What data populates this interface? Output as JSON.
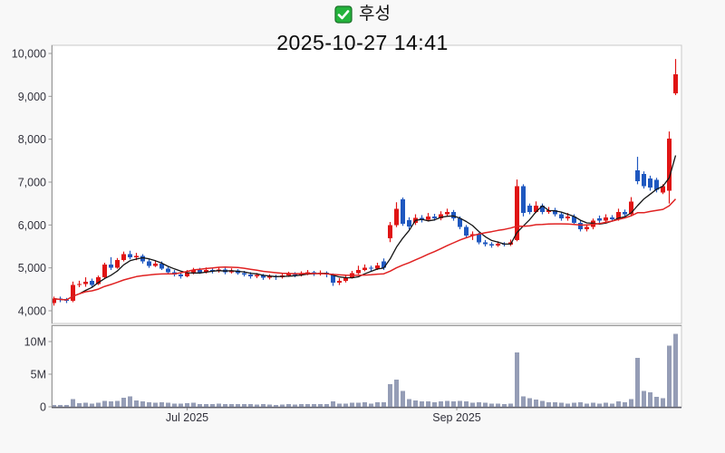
{
  "header": {
    "stock_name": "후성",
    "checkbox_icon": "checked-green-checkbox",
    "datetime": "2025-10-27 14:41"
  },
  "colors": {
    "background": "#f8f8f8",
    "plot_background": "#ffffff",
    "plot_border": "#c9c9c9",
    "axis_line": "#999999",
    "bottom_axis_line": "#5f5f6a",
    "axis_text": "#32323c",
    "candle_up_red": "#e01414",
    "candle_down_blue": "#1f58c0",
    "ma_fast_black": "#141414",
    "ma_slow_red": "#e02222",
    "volume_bar": "#959db6",
    "check_green": "#24b33c",
    "check_green_border": "#1a6e28",
    "check_mark_white": "#ffffff"
  },
  "chart_data": {
    "type": "candlestick",
    "title": "후성 2025-10-27 14:41",
    "panels": [
      "price",
      "volume"
    ],
    "price_axis": {
      "min": 4000,
      "max": 10000,
      "tick_step": 1000,
      "tick_values": [
        10000,
        9000,
        8000,
        7000,
        6000,
        5000,
        4000
      ],
      "tick_labels": [
        "10,000",
        "9,000",
        "8,000",
        "7,000",
        "6,000",
        "5,000",
        "4,000"
      ],
      "grid": false
    },
    "volume_axis": {
      "tick_values": [
        10,
        5,
        0
      ],
      "tick_labels": [
        "10M",
        "5M",
        "0"
      ],
      "unit": "millions_of_shares",
      "grid": false
    },
    "x_ticks": [
      {
        "label": "Jul 2025",
        "index": 21
      },
      {
        "label": "Sep 2025",
        "index": 63.5
      }
    ],
    "moving_averages": [
      {
        "name": "ma-fast",
        "window": 5,
        "color_key": "ma_fast_black",
        "width": 1.3
      },
      {
        "name": "ma-slow",
        "window": 20,
        "color_key": "ma_slow_red",
        "width": 1.5
      }
    ],
    "ohlcv_format": [
      "open",
      "high",
      "low",
      "close",
      "volume_millions"
    ],
    "candles": [
      [
        4180,
        4330,
        4120,
        4280,
        0.3
      ],
      [
        4280,
        4330,
        4200,
        4250,
        0.25
      ],
      [
        4250,
        4300,
        4180,
        4230,
        0.3
      ],
      [
        4230,
        4680,
        4200,
        4600,
        1.2
      ],
      [
        4600,
        4700,
        4550,
        4620,
        0.55
      ],
      [
        4620,
        4780,
        4560,
        4680,
        0.6
      ],
      [
        4700,
        4750,
        4550,
        4600,
        0.5
      ],
      [
        4620,
        4820,
        4600,
        4780,
        0.65
      ],
      [
        4780,
        5120,
        4760,
        5080,
        0.9
      ],
      [
        5080,
        5250,
        4950,
        5000,
        0.8
      ],
      [
        5000,
        5230,
        4980,
        5180,
        0.9
      ],
      [
        5180,
        5380,
        5150,
        5320,
        1.4
      ],
      [
        5320,
        5400,
        5200,
        5250,
        1.6
      ],
      [
        5250,
        5350,
        5180,
        5280,
        1.0
      ],
      [
        5280,
        5320,
        5100,
        5150,
        0.8
      ],
      [
        5150,
        5200,
        5000,
        5050,
        0.7
      ],
      [
        5050,
        5180,
        5020,
        5100,
        0.6
      ],
      [
        5100,
        5150,
        4950,
        4980,
        0.7
      ],
      [
        4980,
        5020,
        4850,
        4900,
        0.6
      ],
      [
        4900,
        4950,
        4800,
        4850,
        0.5
      ],
      [
        4850,
        4900,
        4750,
        4800,
        0.5
      ],
      [
        4800,
        4950,
        4780,
        4900,
        0.55
      ],
      [
        4900,
        5000,
        4850,
        4950,
        0.6
      ],
      [
        4950,
        5000,
        4860,
        4900,
        0.4
      ],
      [
        4900,
        5010,
        4870,
        4950,
        0.45
      ],
      [
        4950,
        4990,
        4870,
        4920,
        0.4
      ],
      [
        4920,
        5020,
        4890,
        4960,
        0.5
      ],
      [
        4960,
        5000,
        4850,
        4900,
        0.4
      ],
      [
        4900,
        4990,
        4870,
        4940,
        0.4
      ],
      [
        4940,
        4970,
        4840,
        4880,
        0.4
      ],
      [
        4880,
        4930,
        4800,
        4850,
        0.4
      ],
      [
        4850,
        4900,
        4750,
        4800,
        0.4
      ],
      [
        4800,
        4880,
        4760,
        4830,
        0.35
      ],
      [
        4830,
        4860,
        4720,
        4770,
        0.4
      ],
      [
        4770,
        4850,
        4730,
        4800,
        0.35
      ],
      [
        4800,
        4840,
        4720,
        4780,
        0.3
      ],
      [
        4780,
        4870,
        4750,
        4820,
        0.35
      ],
      [
        4820,
        4910,
        4790,
        4860,
        0.4
      ],
      [
        4860,
        4900,
        4780,
        4830,
        0.35
      ],
      [
        4830,
        4920,
        4800,
        4870,
        0.4
      ],
      [
        4870,
        4950,
        4830,
        4900,
        0.45
      ],
      [
        4900,
        4930,
        4810,
        4860,
        0.4
      ],
      [
        4860,
        4940,
        4820,
        4890,
        0.4
      ],
      [
        4890,
        4920,
        4780,
        4840,
        0.45
      ],
      [
        4840,
        4870,
        4580,
        4650,
        0.8
      ],
      [
        4650,
        4760,
        4600,
        4700,
        0.5
      ],
      [
        4700,
        4830,
        4660,
        4780,
        0.5
      ],
      [
        4780,
        4930,
        4750,
        4880,
        0.6
      ],
      [
        4880,
        5050,
        4850,
        4950,
        0.6
      ],
      [
        4950,
        5080,
        4920,
        5000,
        0.7
      ],
      [
        5000,
        5050,
        4930,
        4980,
        0.5
      ],
      [
        4980,
        5120,
        4950,
        5060,
        0.7
      ],
      [
        5150,
        5220,
        4950,
        5000,
        0.7
      ],
      [
        5690,
        6070,
        5600,
        6000,
        3.5
      ],
      [
        6000,
        6530,
        5950,
        6380,
        4.2
      ],
      [
        6600,
        6640,
        5980,
        6030,
        2.4
      ],
      [
        6110,
        6180,
        5900,
        5960,
        1.2
      ],
      [
        6050,
        6250,
        6000,
        6170,
        1.0
      ],
      [
        6170,
        6230,
        6060,
        6120,
        0.8
      ],
      [
        6120,
        6280,
        6080,
        6200,
        0.8
      ],
      [
        6200,
        6260,
        6100,
        6150,
        0.7
      ],
      [
        6150,
        6320,
        6110,
        6250,
        0.8
      ],
      [
        6250,
        6380,
        6200,
        6300,
        0.9
      ],
      [
        6300,
        6350,
        6100,
        6150,
        0.8
      ],
      [
        6150,
        6200,
        5900,
        5950,
        0.9
      ],
      [
        5950,
        6000,
        5700,
        5750,
        0.8
      ],
      [
        5750,
        5850,
        5650,
        5780,
        0.6
      ],
      [
        5780,
        5820,
        5550,
        5600,
        0.7
      ],
      [
        5600,
        5650,
        5500,
        5550,
        0.6
      ],
      [
        5550,
        5600,
        5470,
        5520,
        0.5
      ],
      [
        5520,
        5620,
        5490,
        5560,
        0.5
      ],
      [
        5560,
        5600,
        5500,
        5540,
        0.4
      ],
      [
        5540,
        5660,
        5510,
        5600,
        0.5
      ],
      [
        5650,
        7060,
        5620,
        6910,
        8.3
      ],
      [
        6900,
        6950,
        6200,
        6280,
        1.6
      ],
      [
        6450,
        6500,
        6250,
        6300,
        1.3
      ],
      [
        6300,
        6550,
        6280,
        6450,
        1.1
      ],
      [
        6450,
        6500,
        6250,
        6300,
        0.9
      ],
      [
        6300,
        6420,
        6260,
        6350,
        0.7
      ],
      [
        6350,
        6400,
        6200,
        6250,
        0.7
      ],
      [
        6250,
        6300,
        6100,
        6150,
        0.6
      ],
      [
        6150,
        6280,
        6100,
        6200,
        0.5
      ],
      [
        6200,
        6250,
        6000,
        6050,
        0.6
      ],
      [
        6050,
        6100,
        5850,
        5900,
        0.7
      ],
      [
        5900,
        6020,
        5850,
        5950,
        0.5
      ],
      [
        5950,
        6150,
        5900,
        6100,
        0.6
      ],
      [
        6150,
        6220,
        6050,
        6100,
        0.5
      ],
      [
        6100,
        6250,
        6070,
        6180,
        0.6
      ],
      [
        6180,
        6230,
        6080,
        6130,
        0.5
      ],
      [
        6130,
        6380,
        6100,
        6300,
        0.8
      ],
      [
        6300,
        6360,
        6200,
        6250,
        0.7
      ],
      [
        6250,
        6650,
        6220,
        6550,
        1.2
      ],
      [
        7270,
        7590,
        6950,
        7020,
        7.5
      ],
      [
        7190,
        7250,
        6850,
        6910,
        2.4
      ],
      [
        7080,
        7150,
        6800,
        6870,
        2.2
      ],
      [
        7050,
        7100,
        6760,
        6820,
        1.5
      ],
      [
        6760,
        6950,
        6720,
        6900,
        1.3
      ],
      [
        6800,
        8180,
        6500,
        8010,
        9.4
      ],
      [
        9070,
        9870,
        9030,
        9510,
        11.2
      ]
    ]
  }
}
